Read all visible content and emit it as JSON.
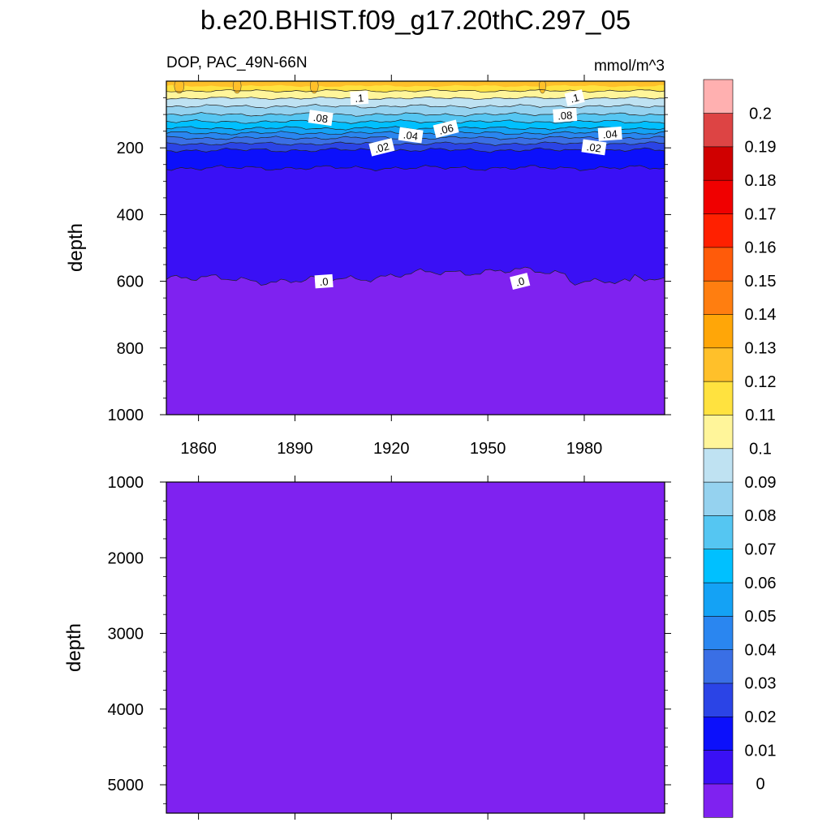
{
  "title": "b.e20.BHIST.f09_g17.20thC.297_05",
  "panel_left_label": "DOP, PAC_49N-66N",
  "panel_right_label": "mmol/m^3",
  "colors": {
    "c0": "#7f22f0",
    "c1": "#3a10f5",
    "c2": "#0c10fb",
    "c3": "#2b44e6",
    "c4": "#3a6fe5",
    "c5": "#2a86f0",
    "c6": "#14a2f5",
    "c7": "#00c0ff",
    "c8": "#55c6f2",
    "c9": "#95d2ef",
    "c10": "#bfe2f2",
    "c11": "#fff59a",
    "c12": "#ffe23f",
    "c13": "#ffc02a",
    "c14": "#ffa608",
    "c15": "#ff7e10",
    "c16": "#ff5b0a",
    "c17": "#ff2000",
    "c18": "#f00000",
    "c19": "#d00000",
    "c20": "#dd4444",
    "c21": "#ffb0b0"
  },
  "chart_data": [
    {
      "type": "heatmap",
      "subtype": "filled-contour",
      "xlabel": "",
      "ylabel": "depth",
      "x_range": [
        1850,
        2005
      ],
      "x_ticks": [
        "1860",
        "1890",
        "1920",
        "1950",
        "1980"
      ],
      "y_range": [
        0,
        1000
      ],
      "y_reversed": true,
      "y_ticks": [
        "200",
        "400",
        "600",
        "800",
        "1000"
      ],
      "contour_labels": [
        {
          "text": ".1",
          "x": 1910,
          "y": 50
        },
        {
          "text": ".1",
          "x": 1977,
          "y": 50
        },
        {
          "text": ".08",
          "x": 1898,
          "y": 110
        },
        {
          "text": ".08",
          "x": 1974,
          "y": 102
        },
        {
          "text": ".06",
          "x": 1937,
          "y": 143
        },
        {
          "text": ".04",
          "x": 1926,
          "y": 162
        },
        {
          "text": ".04",
          "x": 1988,
          "y": 158
        },
        {
          "text": ".02",
          "x": 1917,
          "y": 198
        },
        {
          "text": ".02",
          "x": 1983,
          "y": 198
        },
        {
          "text": ".0",
          "x": 1899,
          "y": 600
        },
        {
          "text": ".0",
          "x": 1960,
          "y": 600
        }
      ]
    },
    {
      "type": "heatmap",
      "subtype": "filled-contour",
      "xlabel": "",
      "ylabel": "depth",
      "x_range": [
        1850,
        2005
      ],
      "y_range": [
        1000,
        5375
      ],
      "y_reversed": true,
      "y_ticks": [
        "1000",
        "2000",
        "3000",
        "4000",
        "5000"
      ],
      "value": 0
    }
  ],
  "colorbar": {
    "labels": [
      "0",
      "0.01",
      "0.02",
      "0.03",
      "0.04",
      "0.05",
      "0.06",
      "0.07",
      "0.08",
      "0.09",
      "0.1",
      "0.11",
      "0.12",
      "0.13",
      "0.14",
      "0.15",
      "0.16",
      "0.17",
      "0.18",
      "0.19",
      "0.2"
    ]
  }
}
